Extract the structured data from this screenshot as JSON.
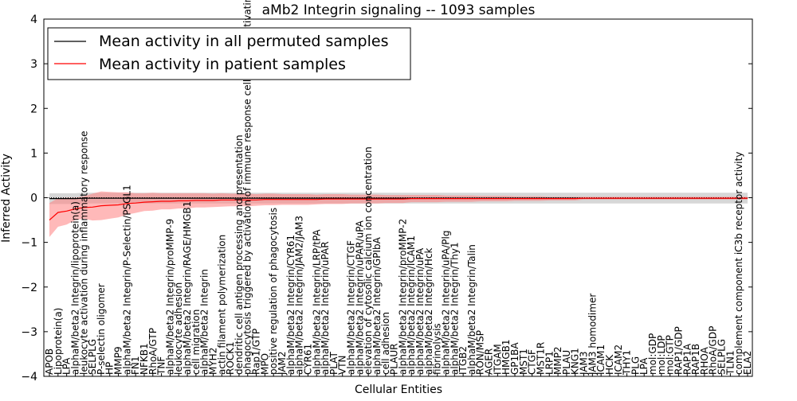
{
  "chart_data": {
    "type": "line",
    "title": "aMb2 Integrin signaling -- 1093 samples",
    "xlabel": "Cellular Entities",
    "ylabel": "Inferred Activity",
    "ylim": [
      -4,
      4
    ],
    "yticks": [
      -4,
      -3,
      -2,
      -1,
      0,
      1,
      2,
      3,
      4
    ],
    "ytick_labels": [
      "−4",
      "−3",
      "−2",
      "−1",
      "0",
      "1",
      "2",
      "3",
      "4"
    ],
    "grid": false,
    "legend_position": "top-left",
    "categories": [
      "APOB",
      "Lipoprotein(a)",
      "LPA",
      "alphaM/beta2 Integrin/lipoprotein(a)",
      "leukocyte activation during inflammatory response",
      "SELPLG",
      "P-selectin oligomer",
      "HP",
      "MMP9",
      "alphaM/beta2 Integrin/P-Selectin/PSGL1",
      "FN1",
      "NFKB1",
      "RhoA/GTP",
      "TNF",
      "alphaM/beta2 Integrin/proMMP-9",
      "leukocyte adhesion",
      "alphaM/beta2 Integrin/RAGE/HMGB1",
      "cell migration",
      "alphaM/beta2 Integrin",
      "MYH2",
      "actin filament polymerization",
      "ROCK1",
      "dendritic cell antigen processing and presentation",
      "phagocytosis triggered by activation of immune response cell surface activating receptor",
      "Rap1/GTP",
      "MPO",
      "positive regulation of phagocytosis",
      "JAM2",
      "alphaM/beta2 Integrin/CYR61",
      "alphaM/beta2 Integrin/JAM2/JAM3",
      "CYR61",
      "alphaM/beta2 Integrin/LRP/tPA",
      "alphaM/beta2 Integrin/uPAR",
      "PLAT",
      "VTN",
      "alphaM/beta2 Integrin/CTGF",
      "alphaM/beta2 Integrin/uPAR/uPA",
      "elevation of cytosolic calcium ion concentration",
      "alphaM/beta2 Integrin/GPIbA",
      "cell adhesion",
      "PLAUR",
      "alphaM/beta2 Integrin/proMMP-2",
      "alphaM/beta2 Integrin/ICAM1",
      "alphaM/beta2 Integrin/uPA",
      "alphaM/beta2 Integrin/Hck",
      "fibrinolysis",
      "alphaM/beta2 Integrin/uPA/Plg",
      "alphaM/beta2 Integrin/Thy1",
      "ITGB2",
      "alphaM/beta2 Integrin/Talin",
      "RON/MSP",
      "AGER",
      "ITGAM",
      "HMGB1",
      "GP1BA",
      "MST1",
      "CTGF",
      "MST1R",
      "LRP1",
      "MMP2",
      "PLAU",
      "KNG1",
      "JAM3",
      "JAM3 homodimer",
      "ICAM1",
      "HCK",
      "ICAM2",
      "THY1",
      "PLG",
      "LPA",
      "mol:GDP",
      "mol:LDP",
      "mol:GTP",
      "RAP1/GDP",
      "RAP1A",
      "RAP1B",
      "RHOA",
      "RhoA/GDP",
      "SELPLG",
      "TLN1",
      "complement component iC3b receptor activity",
      "ELA2"
    ],
    "series": [
      {
        "name": "Mean activity in all permuted samples",
        "color": "#000000",
        "band_color": "#b0b0b0",
        "values": [
          -0.02,
          -0.02,
          -0.02,
          -0.02,
          -0.01,
          -0.01,
          -0.01,
          -0.01,
          -0.01,
          -0.01,
          -0.01,
          -0.01,
          -0.01,
          -0.01,
          -0.01,
          -0.01,
          -0.01,
          -0.01,
          -0.01,
          -0.01,
          -0.01,
          -0.01,
          -0.01,
          -0.01,
          -0.01,
          -0.01,
          -0.01,
          -0.01,
          -0.01,
          -0.01,
          -0.01,
          -0.01,
          -0.01,
          -0.01,
          -0.01,
          -0.01,
          -0.01,
          -0.01,
          -0.01,
          -0.01,
          -0.01,
          -0.01,
          -0.01,
          -0.01,
          -0.01,
          -0.01,
          -0.01,
          -0.01,
          -0.01,
          -0.01,
          -0.01,
          -0.01,
          -0.01,
          -0.01,
          -0.01,
          -0.01,
          -0.01,
          -0.01,
          -0.01,
          -0.01,
          -0.01,
          -0.01,
          -0.01,
          -0.01,
          -0.01,
          -0.01,
          -0.01,
          -0.01,
          -0.01,
          -0.01,
          -0.01,
          -0.01,
          -0.01,
          -0.01,
          -0.01,
          -0.01,
          -0.01,
          -0.01,
          -0.01,
          -0.01,
          -0.01,
          -0.01
        ],
        "band_half_width": [
          0.12,
          0.12,
          0.12,
          0.12,
          0.12,
          0.12,
          0.12,
          0.12,
          0.12,
          0.12,
          0.12,
          0.12,
          0.12,
          0.12,
          0.12,
          0.12,
          0.12,
          0.12,
          0.12,
          0.12,
          0.12,
          0.12,
          0.12,
          0.12,
          0.12,
          0.12,
          0.12,
          0.12,
          0.12,
          0.12,
          0.12,
          0.12,
          0.12,
          0.12,
          0.12,
          0.12,
          0.12,
          0.12,
          0.12,
          0.12,
          0.12,
          0.12,
          0.12,
          0.12,
          0.12,
          0.12,
          0.12,
          0.12,
          0.12,
          0.12,
          0.12,
          0.12,
          0.12,
          0.12,
          0.12,
          0.12,
          0.12,
          0.12,
          0.12,
          0.12,
          0.12,
          0.12,
          0.12,
          0.12,
          0.12,
          0.12,
          0.12,
          0.12,
          0.12,
          0.12,
          0.12,
          0.12,
          0.12,
          0.12,
          0.12,
          0.12,
          0.12,
          0.12,
          0.12,
          0.12,
          0.12,
          0.12
        ]
      },
      {
        "name": "Mean activity in patient samples",
        "color": "#ff0000",
        "band_color": "#ff8080",
        "values": [
          -0.5,
          -0.33,
          -0.3,
          -0.25,
          -0.22,
          -0.21,
          -0.18,
          -0.17,
          -0.16,
          -0.13,
          -0.12,
          -0.1,
          -0.09,
          -0.08,
          -0.08,
          -0.07,
          -0.07,
          -0.06,
          -0.06,
          -0.06,
          -0.05,
          -0.05,
          -0.05,
          -0.05,
          -0.05,
          -0.04,
          -0.04,
          -0.04,
          -0.04,
          -0.04,
          -0.04,
          -0.04,
          -0.03,
          -0.03,
          -0.03,
          -0.03,
          -0.03,
          -0.03,
          -0.03,
          -0.03,
          -0.03,
          -0.03,
          -0.02,
          -0.02,
          -0.02,
          -0.02,
          -0.02,
          -0.02,
          -0.02,
          -0.02,
          -0.02,
          -0.02,
          -0.02,
          -0.02,
          -0.02,
          -0.02,
          -0.02,
          -0.02,
          -0.02,
          -0.02,
          -0.02,
          -0.02,
          -0.01,
          -0.01,
          -0.01,
          -0.01,
          -0.01,
          -0.01,
          -0.01,
          -0.01,
          -0.01,
          -0.01,
          -0.01,
          -0.01,
          -0.01,
          -0.01,
          -0.01,
          -0.01,
          -0.01,
          -0.01,
          -0.01,
          -0.01
        ],
        "band_half_width": [
          0.38,
          0.32,
          0.3,
          0.25,
          0.25,
          0.3,
          0.32,
          0.3,
          0.28,
          0.25,
          0.22,
          0.2,
          0.2,
          0.18,
          0.18,
          0.17,
          0.17,
          0.16,
          0.16,
          0.15,
          0.15,
          0.14,
          0.14,
          0.14,
          0.13,
          0.13,
          0.13,
          0.12,
          0.12,
          0.12,
          0.12,
          0.11,
          0.11,
          0.11,
          0.11,
          0.1,
          0.1,
          0.1,
          0.1,
          0.09,
          0.09,
          0.09,
          0.08,
          0.08,
          0.08,
          0.08,
          0.07,
          0.07,
          0.07,
          0.07,
          0.06,
          0.06,
          0.06,
          0.06,
          0.05,
          0.05,
          0.05,
          0.05,
          0.04,
          0.04,
          0.04,
          0.04,
          0.03,
          0.03,
          0.03,
          0.03,
          0.03,
          0.03,
          0.03,
          0.03,
          0.03,
          0.03,
          0.03,
          0.03,
          0.03,
          0.03,
          0.03,
          0.03,
          0.03,
          0.03,
          0.03,
          0.03
        ]
      }
    ]
  }
}
